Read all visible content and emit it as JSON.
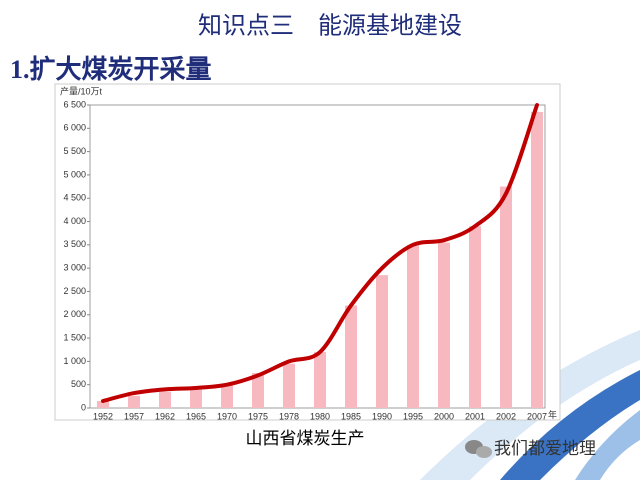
{
  "header": {
    "title": "知识点三　能源基地建设",
    "subtitle": "1.扩大煤炭开采量"
  },
  "chart_data": {
    "type": "bar-line",
    "y_label": "产量/10万t",
    "x_unit": "年",
    "caption": "山西省煤炭生产",
    "categories": [
      "1952",
      "1957",
      "1962",
      "1965",
      "1970",
      "1975",
      "1978",
      "1980",
      "1985",
      "1990",
      "1995",
      "2000",
      "2001",
      "2002",
      "2007"
    ],
    "series": [
      {
        "type": "bar",
        "color": "#f7b8bf",
        "values": [
          150,
          260,
          350,
          400,
          500,
          750,
          950,
          1200,
          2200,
          2850,
          3500,
          3550,
          3900,
          4750,
          6350
        ]
      },
      {
        "type": "line",
        "color": "#c00000",
        "values": [
          150,
          320,
          400,
          430,
          500,
          700,
          1000,
          1200,
          2200,
          3000,
          3500,
          3600,
          3900,
          4600,
          6500
        ]
      }
    ],
    "ylim": [
      0,
      6500
    ],
    "yticks": [
      0,
      500,
      {
        "value": 1000,
        "label": "1 000"
      },
      {
        "value": 1500,
        "label": "1 500"
      },
      {
        "value": 2000,
        "label": "2 000"
      },
      {
        "value": 2500,
        "label": "2 500"
      },
      {
        "value": 3000,
        "label": "3 000"
      },
      {
        "value": 3500,
        "label": "3 500"
      },
      {
        "value": 4000,
        "label": "4 000"
      },
      {
        "value": 4500,
        "label": "4 500"
      },
      {
        "value": 5000,
        "label": "5 000"
      },
      {
        "value": 5500,
        "label": "5 500"
      },
      {
        "value": 6000,
        "label": "6 000"
      },
      {
        "value": 6500,
        "label": "6 500"
      }
    ]
  },
  "watermark": "我们都爱地理"
}
